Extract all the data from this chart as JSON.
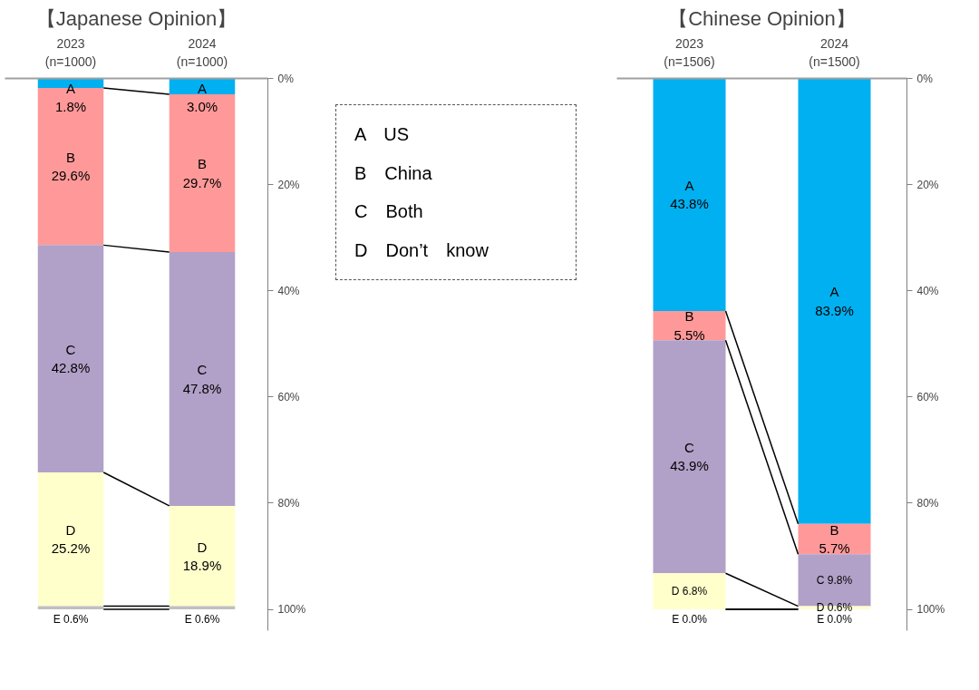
{
  "chart_data": [
    {
      "type": "bar",
      "title": "【Japanese Opinion】",
      "stacked": true,
      "categories": [
        "2023\n(n=1000)",
        "2024\n(n=1000)"
      ],
      "ylim": [
        104,
        0
      ],
      "yticks": [
        {
          "value": 0,
          "label": "0%"
        },
        {
          "value": 20,
          "label": "20%"
        },
        {
          "value": 40,
          "label": "40%"
        },
        {
          "value": 60,
          "label": "60%"
        },
        {
          "value": 80,
          "label": "80%"
        },
        {
          "value": 100,
          "label": "100%"
        }
      ],
      "grid": false,
      "annotations": [
        "A　US",
        "B　China",
        "C　Both",
        "D　Don’t　know"
      ],
      "series": [
        {
          "color": "#00b0f0",
          "values": [
            1.8,
            3.0
          ],
          "value_labels": [
            "A\n1.8%",
            "A\n3.0%"
          ]
        },
        {
          "color": "#ff9999",
          "values": [
            29.6,
            29.7
          ],
          "value_labels": [
            "B\n29.6%",
            "B\n29.7%"
          ]
        },
        {
          "color": "#b1a0c7",
          "values": [
            42.8,
            47.8
          ],
          "value_labels": [
            "C\n42.8%",
            "C\n47.8%"
          ]
        },
        {
          "color": "#ffffcc",
          "values": [
            25.2,
            18.9
          ],
          "value_labels": [
            "D\n25.2%",
            "D\n18.9%"
          ]
        },
        {
          "color": "#bfbfbf",
          "values": [
            0.6,
            0.6
          ],
          "value_labels": [
            "E 0.6%",
            "E 0.6%"
          ]
        }
      ]
    },
    {
      "type": "bar",
      "title": "【Chinese Opinion】",
      "stacked": true,
      "categories": [
        "2023\n(n=1506)",
        "2024\n(n=1500)"
      ],
      "ylim": [
        104,
        0
      ],
      "yticks": [
        {
          "value": 0,
          "label": "0%"
        },
        {
          "value": 20,
          "label": "20%"
        },
        {
          "value": 40,
          "label": "40%"
        },
        {
          "value": 60,
          "label": "60%"
        },
        {
          "value": 80,
          "label": "80%"
        },
        {
          "value": 100,
          "label": "100%"
        }
      ],
      "grid": false,
      "series": [
        {
          "color": "#00b0f0",
          "values": [
            43.8,
            83.9
          ],
          "value_labels": [
            "A\n43.8%",
            "A\n83.9%"
          ]
        },
        {
          "color": "#ff9999",
          "values": [
            5.5,
            5.7
          ],
          "value_labels": [
            "B\n5.5%",
            "B\n5.7%"
          ]
        },
        {
          "color": "#b1a0c7",
          "values": [
            43.9,
            9.8
          ],
          "value_labels": [
            "C\n43.9%",
            "C 9.8%"
          ]
        },
        {
          "color": "#ffffcc",
          "values": [
            6.8,
            0.6
          ],
          "value_labels": [
            "D 6.8%",
            "D 0.6%"
          ]
        },
        {
          "color": "#bfbfbf",
          "values": [
            0.0,
            0.0
          ],
          "value_labels": [
            "E 0.0%",
            "E 0.0%"
          ]
        }
      ]
    }
  ]
}
